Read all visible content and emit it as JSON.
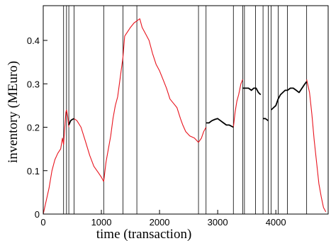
{
  "chart_data": {
    "type": "line",
    "title": "",
    "xlabel": "time (transaction)",
    "ylabel": "inventory (MEuro)",
    "xlim": [
      0,
      4900
    ],
    "ylim": [
      0,
      0.48
    ],
    "x_ticks": [
      0,
      1000,
      2000,
      3000,
      4000
    ],
    "y_ticks": [
      0,
      0.1,
      0.2,
      0.3,
      0.4
    ],
    "x_tick_labels": [
      "0",
      "1000",
      "2000",
      "3000",
      "4000"
    ],
    "y_tick_labels": [
      "0",
      "0.1",
      "0.2",
      "0.3",
      "0.4"
    ],
    "grid": false,
    "legend": "none",
    "colors": {
      "red_series": "#e8141e",
      "black_series": "#000000",
      "vlines": "#000000"
    },
    "vertical_lines_x": [
      350,
      400,
      440,
      530,
      1040,
      1370,
      1610,
      2670,
      2800,
      3270,
      3430,
      3460,
      3650,
      3780,
      3870,
      3920,
      4040,
      4200,
      4530
    ],
    "series": [
      {
        "color": "#e8141e",
        "segments": [
          [
            [
              0,
              0.0
            ],
            [
              50,
              0.03
            ],
            [
              100,
              0.06
            ],
            [
              150,
              0.1
            ],
            [
              200,
              0.125
            ],
            [
              250,
              0.14
            ],
            [
              300,
              0.15
            ],
            [
              330,
              0.175
            ],
            [
              350,
              0.16
            ],
            [
              370,
              0.2
            ],
            [
              390,
              0.235
            ],
            [
              400,
              0.24
            ],
            [
              420,
              0.225
            ],
            [
              440,
              0.2
            ]
          ],
          [
            [
              530,
              0.22
            ],
            [
              580,
              0.215
            ],
            [
              650,
              0.2
            ],
            [
              720,
              0.17
            ],
            [
              800,
              0.135
            ],
            [
              870,
              0.11
            ],
            [
              950,
              0.095
            ],
            [
              1000,
              0.085
            ],
            [
              1040,
              0.075
            ]
          ],
          [
            [
              1040,
              0.075
            ],
            [
              1080,
              0.12
            ],
            [
              1120,
              0.15
            ],
            [
              1160,
              0.18
            ],
            [
              1200,
              0.22
            ],
            [
              1240,
              0.25
            ],
            [
              1280,
              0.27
            ],
            [
              1330,
              0.32
            ],
            [
              1370,
              0.36
            ]
          ],
          [
            [
              1370,
              0.36
            ],
            [
              1400,
              0.41
            ],
            [
              1450,
              0.42
            ],
            [
              1500,
              0.43
            ],
            [
              1560,
              0.44
            ],
            [
              1610,
              0.445
            ],
            [
              1660,
              0.45
            ],
            [
              1700,
              0.43
            ],
            [
              1760,
              0.415
            ],
            [
              1820,
              0.4
            ],
            [
              1880,
              0.37
            ],
            [
              1940,
              0.345
            ],
            [
              2000,
              0.33
            ],
            [
              2060,
              0.31
            ],
            [
              2120,
              0.29
            ],
            [
              2180,
              0.265
            ],
            [
              2240,
              0.255
            ],
            [
              2300,
              0.245
            ],
            [
              2360,
              0.22
            ],
            [
              2400,
              0.205
            ],
            [
              2450,
              0.19
            ],
            [
              2520,
              0.18
            ],
            [
              2600,
              0.175
            ],
            [
              2670,
              0.165
            ]
          ],
          [
            [
              2670,
              0.165
            ],
            [
              2720,
              0.175
            ],
            [
              2760,
              0.19
            ],
            [
              2800,
              0.2
            ]
          ],
          [
            [
              3270,
              0.2
            ],
            [
              3300,
              0.235
            ],
            [
              3330,
              0.26
            ],
            [
              3360,
              0.275
            ],
            [
              3400,
              0.3
            ],
            [
              3430,
              0.31
            ]
          ],
          [
            [
              4530,
              0.31
            ],
            [
              4580,
              0.28
            ],
            [
              4620,
              0.23
            ],
            [
              4660,
              0.17
            ],
            [
              4700,
              0.12
            ],
            [
              4740,
              0.07
            ],
            [
              4780,
              0.04
            ],
            [
              4820,
              0.015
            ],
            [
              4860,
              0.005
            ]
          ]
        ]
      },
      {
        "color": "#000000",
        "segments": [
          [
            [
              440,
              0.205
            ],
            [
              470,
              0.215
            ],
            [
              500,
              0.218
            ],
            [
              530,
              0.22
            ]
          ],
          [
            [
              2800,
              0.21
            ],
            [
              2850,
              0.21
            ],
            [
              2900,
              0.215
            ],
            [
              2950,
              0.218
            ],
            [
              3000,
              0.22
            ],
            [
              3050,
              0.215
            ],
            [
              3100,
              0.21
            ],
            [
              3150,
              0.205
            ],
            [
              3200,
              0.205
            ],
            [
              3270,
              0.2
            ]
          ],
          [
            [
              3430,
              0.29
            ],
            [
              3480,
              0.29
            ],
            [
              3530,
              0.29
            ],
            [
              3580,
              0.285
            ],
            [
              3620,
              0.29
            ],
            [
              3660,
              0.29
            ],
            [
              3700,
              0.28
            ],
            [
              3740,
              0.275
            ]
          ],
          [
            [
              3780,
              0.22
            ],
            [
              3820,
              0.22
            ],
            [
              3870,
              0.215
            ]
          ],
          [
            [
              3920,
              0.24
            ],
            [
              3960,
              0.245
            ],
            [
              4000,
              0.25
            ],
            [
              4040,
              0.265
            ],
            [
              4080,
              0.275
            ],
            [
              4120,
              0.28
            ],
            [
              4160,
              0.285
            ],
            [
              4200,
              0.285
            ],
            [
              4250,
              0.29
            ],
            [
              4300,
              0.29
            ],
            [
              4350,
              0.285
            ],
            [
              4400,
              0.28
            ],
            [
              4450,
              0.29
            ],
            [
              4500,
              0.3
            ],
            [
              4530,
              0.305
            ]
          ]
        ]
      }
    ]
  }
}
